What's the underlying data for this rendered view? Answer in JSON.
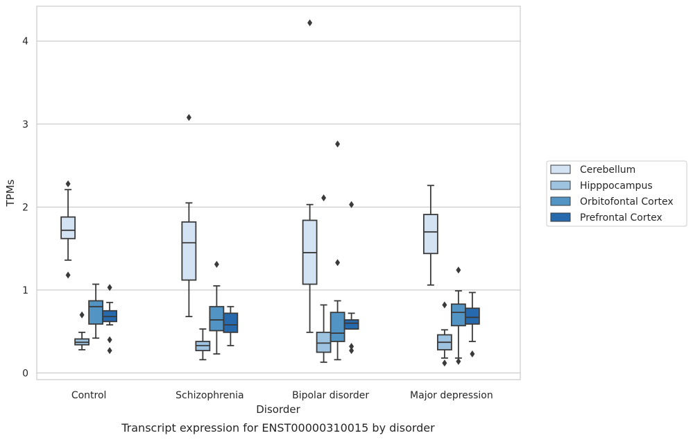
{
  "chart_data": {
    "type": "box",
    "title": "",
    "caption": "Transcript expression for ENST00000310015 by disorder",
    "xlabel": "Disorder",
    "ylabel": "TPMs",
    "ylim": [
      -0.08,
      4.42
    ],
    "yticks": [
      0,
      1,
      2,
      3,
      4
    ],
    "grid": "horizontal",
    "legend_position": "right",
    "categories": [
      "Control",
      "Schizophrenia",
      "Bipolar disorder",
      "Major depression"
    ],
    "series": [
      {
        "name": "Cerebellum",
        "color": "#d4e3f3",
        "boxes": [
          {
            "whislo": 1.36,
            "q1": 1.62,
            "med": 1.72,
            "q3": 1.88,
            "whishi": 2.21,
            "fliers": [
              2.28,
              1.18
            ]
          },
          {
            "whislo": 0.68,
            "q1": 1.12,
            "med": 1.57,
            "q3": 1.82,
            "whishi": 2.05,
            "fliers": [
              3.08
            ]
          },
          {
            "whislo": 0.49,
            "q1": 1.07,
            "med": 1.45,
            "q3": 1.84,
            "whishi": 2.03,
            "fliers": [
              4.22
            ]
          },
          {
            "whislo": 1.06,
            "q1": 1.44,
            "med": 1.7,
            "q3": 1.91,
            "whishi": 2.26,
            "fliers": []
          }
        ]
      },
      {
        "name": "Hipppocampus",
        "color": "#9dc3e0",
        "boxes": [
          {
            "whislo": 0.28,
            "q1": 0.34,
            "med": 0.37,
            "q3": 0.41,
            "whishi": 0.49,
            "fliers": [
              0.7
            ]
          },
          {
            "whislo": 0.16,
            "q1": 0.27,
            "med": 0.33,
            "q3": 0.38,
            "whishi": 0.53,
            "fliers": []
          },
          {
            "whislo": 0.13,
            "q1": 0.25,
            "med": 0.36,
            "q3": 0.49,
            "whishi": 0.82,
            "fliers": [
              2.11
            ]
          },
          {
            "whislo": 0.18,
            "q1": 0.28,
            "med": 0.37,
            "q3": 0.46,
            "whishi": 0.52,
            "fliers": [
              0.82,
              0.12
            ]
          }
        ]
      },
      {
        "name": "Orbitofontal Cortex",
        "color": "#5295c5",
        "boxes": [
          {
            "whislo": 0.42,
            "q1": 0.59,
            "med": 0.8,
            "q3": 0.87,
            "whishi": 1.07,
            "fliers": []
          },
          {
            "whislo": 0.23,
            "q1": 0.51,
            "med": 0.64,
            "q3": 0.8,
            "whishi": 1.05,
            "fliers": [
              1.31
            ]
          },
          {
            "whislo": 0.16,
            "q1": 0.38,
            "med": 0.48,
            "q3": 0.73,
            "whishi": 0.87,
            "fliers": [
              2.76,
              1.33
            ]
          },
          {
            "whislo": 0.18,
            "q1": 0.57,
            "med": 0.73,
            "q3": 0.83,
            "whishi": 0.99,
            "fliers": [
              1.24,
              0.14
            ]
          }
        ]
      },
      {
        "name": "Prefrontal Cortex",
        "color": "#2769ad",
        "boxes": [
          {
            "whislo": 0.58,
            "q1": 0.62,
            "med": 0.68,
            "q3": 0.75,
            "whishi": 0.85,
            "fliers": [
              1.03,
              0.4,
              0.27
            ]
          },
          {
            "whislo": 0.33,
            "q1": 0.49,
            "med": 0.58,
            "q3": 0.72,
            "whishi": 0.8,
            "fliers": []
          },
          {
            "whislo": 0.53,
            "q1": 0.53,
            "med": 0.6,
            "q3": 0.64,
            "whishi": 0.72,
            "fliers": [
              2.03,
              0.32,
              0.27
            ]
          },
          {
            "whislo": 0.38,
            "q1": 0.59,
            "med": 0.67,
            "q3": 0.78,
            "whishi": 0.97,
            "fliers": [
              0.23
            ]
          }
        ]
      }
    ]
  }
}
